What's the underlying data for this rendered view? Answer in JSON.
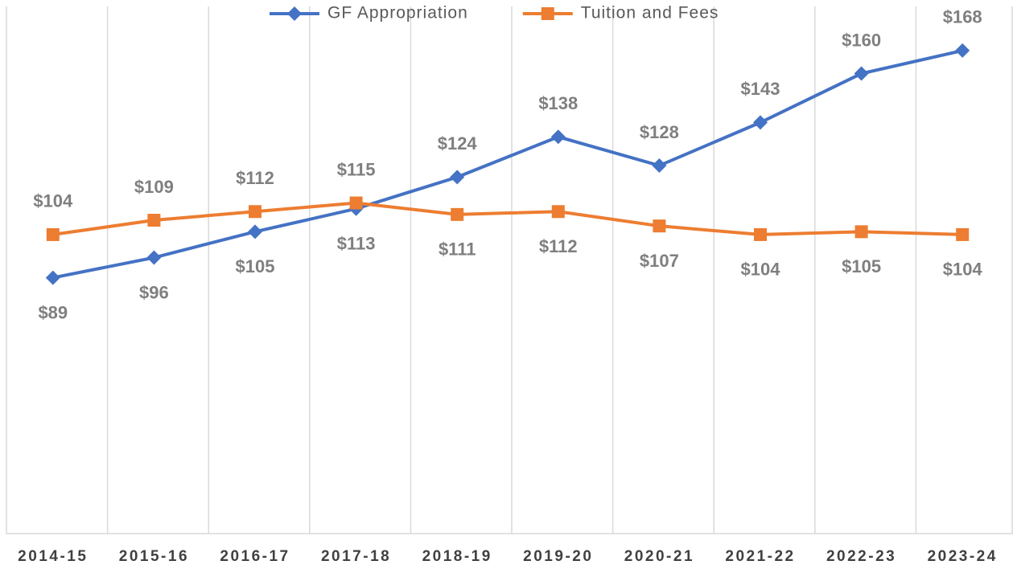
{
  "chart_data": {
    "type": "line",
    "categories": [
      "2014-15",
      "2015-16",
      "2016-17",
      "2017-18",
      "2018-19",
      "2019-20",
      "2020-21",
      "2021-22",
      "2022-23",
      "2023-24"
    ],
    "series": [
      {
        "name": "GF Appropriation",
        "color": "#4472c4",
        "marker": "diamond",
        "values": [
          89,
          96,
          105,
          113,
          124,
          138,
          128,
          143,
          160,
          168
        ],
        "value_labels": [
          "$89",
          "$96",
          "$105",
          "$113",
          "$124",
          "$138",
          "$128",
          "$143",
          "$160",
          "$168"
        ]
      },
      {
        "name": "Tuition and Fees",
        "color": "#ed7d31",
        "marker": "square",
        "values": [
          104,
          109,
          112,
          115,
          111,
          112,
          107,
          104,
          105,
          104
        ],
        "value_labels": [
          "$104",
          "$109",
          "$112",
          "$115",
          "$111",
          "$112",
          "$107",
          "$104",
          "$105",
          "$104"
        ]
      }
    ],
    "ylim": [
      0,
      180
    ],
    "legend": "top"
  }
}
